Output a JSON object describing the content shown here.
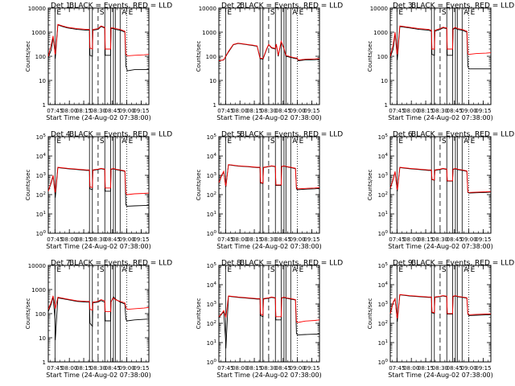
{
  "chart_data": {
    "type": "line",
    "shared": {
      "x_tick_labels": [
        "07:45",
        "08:00",
        "08:15",
        "08:30",
        "08:45",
        "09:00",
        "09:15"
      ],
      "x_ticks_minutes_after_0738": [
        7,
        22,
        37,
        52,
        67,
        82,
        97
      ],
      "x_range_minutes_after_0738": [
        0,
        105
      ],
      "xlabel": "Start Time (24-Aug-02 07:38:00)",
      "ylabel": "Counts/sec",
      "y_scale": "log",
      "legend_text": "BLACK = Events, RED = LLD",
      "series": [
        {
          "name": "Events",
          "color": "#000000"
        },
        {
          "name": "LLD",
          "color": "#ff0000"
        }
      ],
      "markers": [
        {
          "label": "E",
          "x_minute": 7,
          "style": "solid"
        },
        {
          "label": "S",
          "x_minute": 52,
          "style": "dashed"
        },
        {
          "label": "A",
          "x_minute": 75,
          "style": "solid"
        },
        {
          "label": "E",
          "x_minute": 82,
          "style": "dotted"
        }
      ],
      "extra_solid_lines_x_minute": [
        43,
        46,
        59,
        65,
        68,
        70
      ]
    },
    "panels": [
      {
        "title": "Det 1",
        "y_tick_labels": [
          "1",
          "10",
          "100",
          "1000",
          "10000"
        ],
        "y_range": [
          1,
          10000
        ],
        "x": [
          0,
          3,
          5,
          7,
          7.3,
          10,
          15,
          20,
          30,
          40,
          43,
          43.5,
          46,
          46.5,
          52,
          55,
          59,
          59.5,
          65,
          65.5,
          68,
          70,
          75,
          80,
          81,
          82,
          82.5,
          90,
          100,
          105
        ],
        "series_values": {
          "Events": [
            90,
            180,
            600,
            150,
            80,
            2000,
            1700,
            1500,
            1300,
            1200,
            1200,
            110,
            100,
            1200,
            1300,
            1700,
            1500,
            110,
            110,
            1400,
            1400,
            1300,
            1200,
            1000,
            40,
            30,
            25,
            28,
            28,
            28
          ],
          "LLD": [
            100,
            300,
            700,
            140,
            120,
            2100,
            1800,
            1600,
            1400,
            1300,
            1300,
            220,
            200,
            1300,
            1400,
            1800,
            1600,
            200,
            200,
            1500,
            1500,
            1400,
            1300,
            1100,
            120,
            110,
            105,
            110,
            115,
            120
          ]
        }
      },
      {
        "title": "Det 2",
        "y_tick_labels": [
          "1",
          "10",
          "100",
          "1000",
          "10000"
        ],
        "y_range": [
          1,
          10000
        ],
        "x": [
          0,
          5,
          10,
          15,
          20,
          25,
          30,
          35,
          40,
          43,
          46,
          50,
          52,
          55,
          59,
          60,
          62,
          65,
          68,
          70,
          75,
          80,
          82,
          82.5,
          90,
          100,
          105
        ],
        "series_values": {
          "Events": [
            65,
            70,
            150,
            300,
            340,
            320,
            300,
            280,
            260,
            80,
            75,
            200,
            300,
            220,
            200,
            300,
            100,
            400,
            200,
            100,
            90,
            80,
            80,
            65,
            70,
            72,
            75
          ],
          "LLD": [
            65,
            72,
            160,
            310,
            350,
            330,
            310,
            290,
            270,
            85,
            80,
            210,
            310,
            230,
            210,
            320,
            110,
            420,
            210,
            110,
            95,
            85,
            85,
            70,
            75,
            78,
            80
          ]
        }
      },
      {
        "title": "Det 3",
        "y_tick_labels": [
          "1",
          "10",
          "100",
          "1000",
          "10000"
        ],
        "y_range": [
          1,
          10000
        ],
        "x": [
          0,
          3,
          5,
          7,
          7.3,
          10,
          20,
          30,
          40,
          43,
          43.5,
          46,
          46.5,
          52,
          55,
          59,
          59.5,
          65,
          65.5,
          68,
          70,
          75,
          80,
          81,
          82,
          82.5,
          90,
          100,
          105
        ],
        "series_values": {
          "Events": [
            90,
            200,
            900,
            120,
            70,
            1700,
            1500,
            1300,
            1200,
            1100,
            120,
            110,
            1100,
            1300,
            1500,
            1400,
            110,
            110,
            1300,
            1500,
            1300,
            1200,
            1000,
            40,
            30,
            30,
            30,
            30,
            30
          ],
          "LLD": [
            100,
            300,
            1000,
            140,
            120,
            1800,
            1600,
            1400,
            1300,
            1200,
            200,
            200,
            1200,
            1400,
            1600,
            1500,
            200,
            200,
            1400,
            1600,
            1400,
            1300,
            1100,
            130,
            120,
            120,
            130,
            135,
            140
          ]
        }
      },
      {
        "title": "Det 4",
        "y_tick_labels": [
          "10^0",
          "10^1",
          "10^2",
          "10^3",
          "10^4",
          "10^5"
        ],
        "y_range": [
          1,
          100000
        ],
        "x": [
          0,
          3,
          5,
          7,
          7.3,
          10,
          20,
          30,
          40,
          43,
          43.5,
          46,
          46.5,
          52,
          55,
          59,
          59.5,
          65,
          65.5,
          68,
          70,
          75,
          80,
          81,
          82,
          82.5,
          90,
          100,
          105
        ],
        "series_values": {
          "Events": [
            150,
            400,
            900,
            120,
            70,
            2500,
            2200,
            2000,
            1800,
            1800,
            200,
            180,
            1800,
            2000,
            2200,
            2000,
            150,
            150,
            2000,
            2200,
            2000,
            1800,
            1600,
            30,
            25,
            25,
            26,
            27,
            28
          ],
          "LLD": [
            150,
            450,
            1000,
            150,
            130,
            2600,
            2300,
            2100,
            1900,
            1900,
            250,
            230,
            1900,
            2100,
            2300,
            2100,
            220,
            220,
            2100,
            2300,
            2100,
            1900,
            1700,
            120,
            100,
            100,
            110,
            115,
            120
          ]
        }
      },
      {
        "title": "Det 5",
        "y_tick_labels": [
          "10^0",
          "10^1",
          "10^2",
          "10^3",
          "10^4",
          "10^5"
        ],
        "y_range": [
          1,
          100000
        ],
        "x": [
          0,
          3,
          5,
          7,
          7.3,
          10,
          20,
          30,
          40,
          43,
          43.5,
          46,
          46.5,
          52,
          55,
          59,
          59.5,
          65,
          65.5,
          68,
          70,
          75,
          80,
          81,
          82,
          82.5,
          90,
          100,
          105
        ],
        "series_values": {
          "Events": [
            400,
            1000,
            1500,
            300,
            250,
            3500,
            3000,
            2800,
            2500,
            2500,
            400,
            380,
            2500,
            2800,
            3000,
            2800,
            300,
            300,
            2800,
            3000,
            2800,
            2500,
            2200,
            200,
            180,
            180,
            190,
            200,
            210
          ],
          "LLD": [
            420,
            1050,
            1600,
            320,
            280,
            3600,
            3100,
            2900,
            2600,
            2600,
            420,
            400,
            2600,
            2900,
            3100,
            2900,
            320,
            320,
            2900,
            3100,
            2900,
            2600,
            2300,
            220,
            200,
            200,
            210,
            220,
            230
          ]
        }
      },
      {
        "title": "Det 6",
        "y_tick_labels": [
          "10^0",
          "10^1",
          "10^2",
          "10^3",
          "10^4",
          "10^5"
        ],
        "y_range": [
          1,
          100000
        ],
        "x": [
          0,
          3,
          5,
          7,
          7.3,
          10,
          20,
          30,
          40,
          43,
          43.5,
          46,
          46.5,
          52,
          55,
          59,
          59.5,
          65,
          65.5,
          68,
          70,
          75,
          80,
          81,
          82,
          82.5,
          90,
          100,
          105
        ],
        "series_values": {
          "Events": [
            200,
            600,
            1500,
            200,
            150,
            2500,
            2200,
            2000,
            1800,
            1800,
            600,
            550,
            1800,
            2000,
            2200,
            2000,
            500,
            500,
            2000,
            2200,
            2000,
            1800,
            1600,
            130,
            120,
            120,
            125,
            130,
            135
          ],
          "LLD": [
            220,
            650,
            1600,
            220,
            180,
            2600,
            2300,
            2100,
            1900,
            1900,
            620,
            580,
            1900,
            2100,
            2300,
            2100,
            520,
            520,
            2100,
            2300,
            2100,
            1900,
            1700,
            140,
            130,
            130,
            135,
            140,
            145
          ]
        }
      },
      {
        "title": "Det 7",
        "y_tick_labels": [
          "1",
          "10",
          "100",
          "1000",
          "10000"
        ],
        "y_range": [
          1,
          10000
        ],
        "x": [
          0,
          3,
          5,
          7,
          7.3,
          10,
          20,
          30,
          40,
          43,
          43.5,
          46,
          46.5,
          52,
          55,
          59,
          59.5,
          65,
          65.5,
          68,
          70,
          75,
          80,
          81,
          82,
          82.5,
          90,
          100,
          105
        ],
        "series_values": {
          "Events": [
            120,
            250,
            500,
            60,
            8,
            450,
            380,
            320,
            300,
            300,
            40,
            30,
            280,
            300,
            350,
            300,
            50,
            50,
            300,
            500,
            400,
            300,
            250,
            60,
            50,
            50,
            55,
            58,
            60
          ],
          "LLD": [
            150,
            300,
            550,
            200,
            160,
            480,
            400,
            340,
            320,
            320,
            150,
            140,
            300,
            320,
            380,
            340,
            120,
            120,
            320,
            450,
            380,
            320,
            280,
            180,
            160,
            150,
            160,
            170,
            180
          ]
        }
      },
      {
        "title": "Det 8",
        "y_tick_labels": [
          "10^0",
          "10^1",
          "10^2",
          "10^3",
          "10^4",
          "10^5"
        ],
        "y_range": [
          1,
          100000
        ],
        "x": [
          0,
          3,
          5,
          7,
          7.3,
          10,
          20,
          30,
          40,
          43,
          43.5,
          46,
          46.5,
          52,
          55,
          59,
          59.5,
          65,
          65.5,
          68,
          70,
          75,
          80,
          81,
          82,
          82.5,
          90,
          100,
          105
        ],
        "series_values": {
          "Events": [
            200,
            300,
            400,
            15,
            5,
            2500,
            2200,
            2000,
            1800,
            1800,
            250,
            220,
            1800,
            2000,
            2200,
            2000,
            150,
            150,
            2000,
            2200,
            2000,
            1800,
            1600,
            30,
            25,
            25,
            26,
            27,
            28
          ],
          "LLD": [
            220,
            320,
            450,
            220,
            200,
            2600,
            2300,
            2100,
            1900,
            1900,
            300,
            260,
            1900,
            2100,
            2300,
            2100,
            220,
            220,
            2100,
            2300,
            2100,
            1900,
            1700,
            120,
            110,
            110,
            130,
            140,
            150
          ]
        }
      },
      {
        "title": "Det 9",
        "y_tick_labels": [
          "10^0",
          "10^1",
          "10^2",
          "10^3",
          "10^4",
          "10^5"
        ],
        "y_range": [
          1,
          100000
        ],
        "x": [
          0,
          3,
          5,
          7,
          7.3,
          10,
          20,
          30,
          40,
          43,
          43.5,
          46,
          46.5,
          52,
          55,
          59,
          59.5,
          65,
          65.5,
          68,
          70,
          75,
          80,
          81,
          82,
          82.5,
          90,
          100,
          105
        ],
        "series_values": {
          "Events": [
            300,
            1200,
            1800,
            200,
            120,
            3000,
            2600,
            2400,
            2200,
            2200,
            350,
            320,
            2200,
            2400,
            2600,
            2400,
            300,
            300,
            2400,
            2600,
            2400,
            2200,
            2000,
            300,
            250,
            250,
            260,
            270,
            280
          ],
          "LLD": [
            320,
            1250,
            1900,
            220,
            180,
            3100,
            2700,
            2500,
            2300,
            2300,
            380,
            350,
            2300,
            2500,
            2700,
            2500,
            320,
            320,
            2500,
            2700,
            2500,
            2300,
            2100,
            320,
            280,
            280,
            290,
            300,
            310
          ]
        }
      }
    ]
  }
}
